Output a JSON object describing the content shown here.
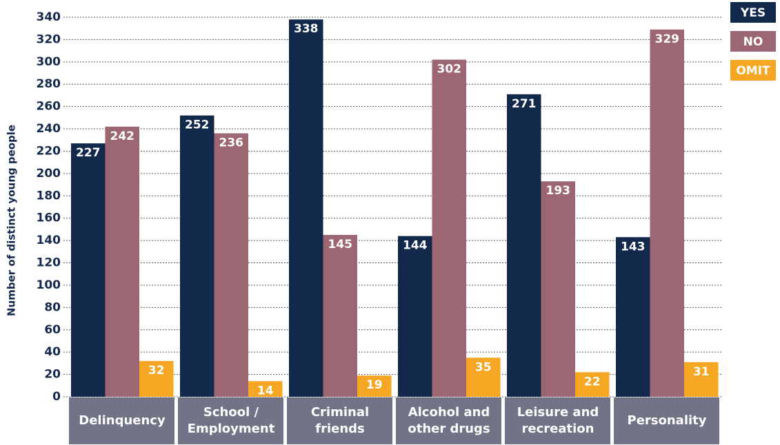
{
  "chart_data": {
    "type": "bar",
    "y_label": "Number of distinct young people",
    "categories": [
      [
        "Delinquency"
      ],
      [
        "School /",
        "Employment"
      ],
      [
        "Criminal",
        "friends"
      ],
      [
        "Alcohol and",
        "other drugs"
      ],
      [
        "Leisure and",
        "recreation"
      ],
      [
        "Personality"
      ]
    ],
    "series": [
      {
        "name": "YES",
        "color": "#13294b",
        "values": [
          227,
          252,
          338,
          144,
          271,
          143
        ]
      },
      {
        "name": "NO",
        "color": "#9c6672",
        "values": [
          242,
          236,
          145,
          302,
          193,
          329
        ]
      },
      {
        "name": "OMIT",
        "color": "#f5a623",
        "values": [
          32,
          14,
          19,
          35,
          22,
          31
        ]
      }
    ],
    "ylim": [
      0,
      340
    ],
    "yticks": [
      0,
      20,
      40,
      60,
      80,
      100,
      120,
      140,
      160,
      180,
      200,
      220,
      240,
      260,
      280,
      300,
      320,
      340
    ],
    "grid": true,
    "legend": "top-right",
    "category_box_color": "#717386"
  }
}
